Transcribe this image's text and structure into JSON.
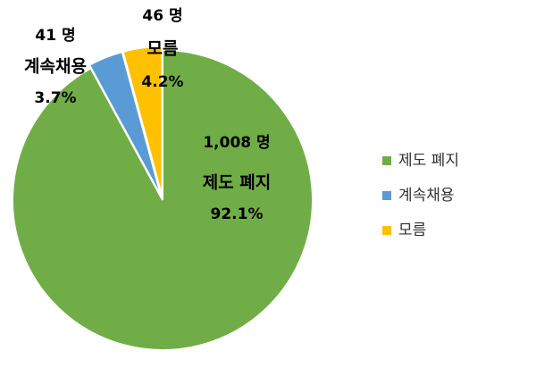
{
  "chart_data": {
    "type": "pie",
    "categories": [
      "제도 폐지",
      "계속채용",
      "모름"
    ],
    "values": [
      1008,
      41,
      46
    ],
    "value_labels": [
      "1,008 명",
      "41 명",
      "46 명"
    ],
    "percents": [
      92.1,
      3.7,
      4.2
    ],
    "percent_labels": [
      "92.1%",
      "3.7%",
      "4.2%"
    ],
    "colors": [
      "#70ad47",
      "#5b9bd5",
      "#ffc000"
    ],
    "legend": "right"
  }
}
